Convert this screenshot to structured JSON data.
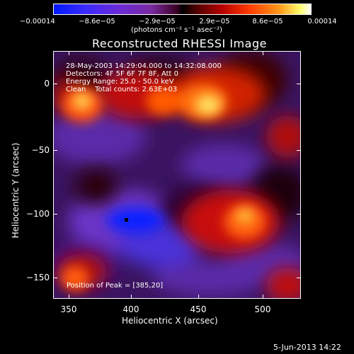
{
  "colorbar": {
    "labels": [
      "−0.00014",
      "−8.6e−05",
      "−2.9e−05",
      "2.9e−05",
      "8.6e−05",
      "0.00014"
    ],
    "units": "(photons cm⁻² s⁻¹ asec⁻²)"
  },
  "title": "Reconstructed RHESSI Image",
  "info": {
    "time": "28-May-2003 14:29:04.000 to 14:32:08.000",
    "detectors": "Detectors: 4F 5F 6F 7F 8F, Att 0",
    "energy": "Energy Range: 25.0 - 50.0 keV",
    "clean": "Clean    Total counts: 2.63E+03"
  },
  "peak": "Position of Peak = [385,20]",
  "axes": {
    "ylabel": "Heliocentric Y (arcsec)",
    "xlabel": "Heliocentric X (arcsec)",
    "yticks": [
      "0",
      "−50",
      "−100",
      "−150"
    ],
    "xticks": [
      "350",
      "400",
      "450",
      "500"
    ]
  },
  "footer_date": "5-Jun-2013 14:22",
  "colors": {
    "background": "#000000",
    "frame": "#ffffff"
  }
}
